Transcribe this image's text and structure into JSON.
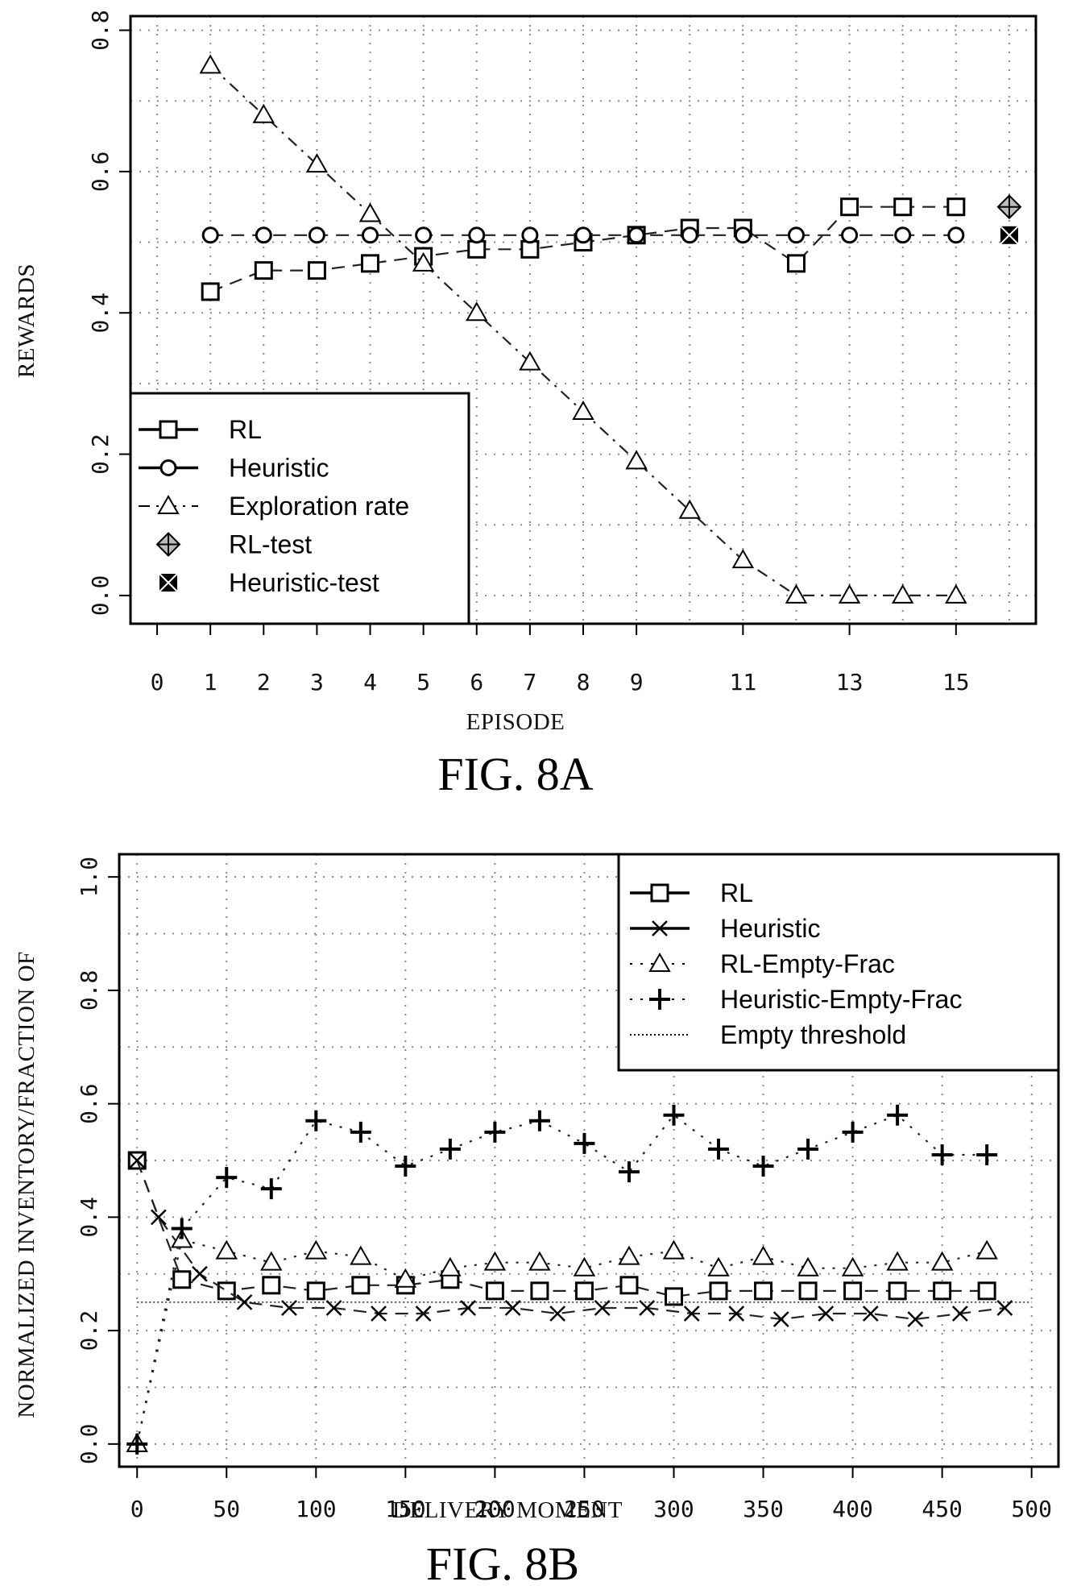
{
  "chart_data": [
    {
      "type": "line",
      "caption": "FIG. 8A",
      "xlabel": "EPISODE",
      "ylabel": "REWARDS",
      "xlim": [
        -0.5,
        16.5
      ],
      "ylim": [
        -0.04,
        0.82
      ],
      "x_ticks": [
        0,
        1,
        2,
        3,
        4,
        5,
        6,
        7,
        8,
        9,
        11,
        13,
        15
      ],
      "y_ticks": [
        "0.0",
        "0.2",
        "0.4",
        "0.6",
        "0.8"
      ],
      "grid": true,
      "legend_position": "bottom-left",
      "series": [
        {
          "name": "RL",
          "marker": "square",
          "line": "dashed",
          "x": [
            1,
            2,
            3,
            4,
            5,
            6,
            7,
            8,
            9,
            10,
            11,
            12,
            13,
            14,
            15
          ],
          "values": [
            0.43,
            0.46,
            0.46,
            0.47,
            0.48,
            0.49,
            0.49,
            0.5,
            0.51,
            0.52,
            0.52,
            0.47,
            0.55,
            0.55,
            0.55
          ]
        },
        {
          "name": "Heuristic",
          "marker": "circle",
          "line": "dashed",
          "x": [
            1,
            2,
            3,
            4,
            5,
            6,
            7,
            8,
            9,
            10,
            11,
            12,
            13,
            14,
            15
          ],
          "values": [
            0.51,
            0.51,
            0.51,
            0.51,
            0.51,
            0.51,
            0.51,
            0.51,
            0.51,
            0.51,
            0.51,
            0.51,
            0.51,
            0.51,
            0.51
          ]
        },
        {
          "name": "Exploration rate",
          "marker": "triangle",
          "line": "dashdot",
          "x": [
            1,
            2,
            3,
            4,
            5,
            6,
            7,
            8,
            9,
            10,
            11,
            12,
            13,
            14,
            15
          ],
          "values": [
            0.75,
            0.68,
            0.61,
            0.54,
            0.47,
            0.4,
            0.33,
            0.26,
            0.19,
            0.12,
            0.05,
            0.0,
            0.0,
            0.0,
            0.0
          ]
        },
        {
          "name": "RL-test",
          "marker": "diamond-cross",
          "line": "none",
          "x": [
            16
          ],
          "values": [
            0.55
          ]
        },
        {
          "name": "Heuristic-test",
          "marker": "x-square",
          "line": "none",
          "x": [
            16
          ],
          "values": [
            0.51
          ]
        }
      ]
    },
    {
      "type": "line",
      "caption": "FIG. 8B",
      "xlabel": "DELIVERY MOMENT",
      "ylabel": "NORMALIZED INVENTORY/FRACTION OF",
      "xlim": [
        -10,
        515
      ],
      "ylim": [
        -0.04,
        1.04
      ],
      "x_ticks": [
        0,
        50,
        100,
        150,
        200,
        250,
        300,
        350,
        400,
        450,
        500
      ],
      "y_ticks": [
        "0.0",
        "0.2",
        "0.4",
        "0.6",
        "0.8",
        "1.0"
      ],
      "grid": true,
      "legend_position": "top-right",
      "series": [
        {
          "name": "RL",
          "marker": "square",
          "line": "dashed",
          "x": [
            0,
            25,
            50,
            75,
            100,
            125,
            150,
            175,
            200,
            225,
            250,
            275,
            300,
            325,
            350,
            375,
            400,
            425,
            450,
            475
          ],
          "values": [
            0.5,
            0.29,
            0.27,
            0.28,
            0.27,
            0.28,
            0.28,
            0.29,
            0.27,
            0.27,
            0.27,
            0.28,
            0.26,
            0.27,
            0.27,
            0.27,
            0.27,
            0.27,
            0.27,
            0.27
          ]
        },
        {
          "name": "Heuristic",
          "marker": "x",
          "line": "dashed",
          "x": [
            0,
            12,
            35,
            60,
            85,
            110,
            135,
            160,
            185,
            210,
            235,
            260,
            285,
            310,
            335,
            360,
            385,
            410,
            435,
            460,
            485
          ],
          "values": [
            0.5,
            0.4,
            0.3,
            0.25,
            0.24,
            0.24,
            0.23,
            0.23,
            0.24,
            0.24,
            0.23,
            0.24,
            0.24,
            0.23,
            0.23,
            0.22,
            0.23,
            0.23,
            0.22,
            0.23,
            0.24
          ]
        },
        {
          "name": "RL-Empty-Frac",
          "marker": "triangle",
          "line": "dotted",
          "x": [
            0,
            25,
            50,
            75,
            100,
            125,
            150,
            175,
            200,
            225,
            250,
            275,
            300,
            325,
            350,
            375,
            400,
            425,
            450,
            475
          ],
          "values": [
            0.0,
            0.36,
            0.34,
            0.32,
            0.34,
            0.33,
            0.29,
            0.31,
            0.32,
            0.32,
            0.31,
            0.33,
            0.34,
            0.31,
            0.33,
            0.31,
            0.31,
            0.32,
            0.32,
            0.34
          ]
        },
        {
          "name": "Heuristic-Empty-Frac",
          "marker": "plus",
          "line": "dotted",
          "x": [
            0,
            25,
            50,
            75,
            100,
            125,
            150,
            175,
            200,
            225,
            250,
            275,
            300,
            325,
            350,
            375,
            400,
            425,
            450,
            475
          ],
          "values": [
            0.0,
            0.38,
            0.47,
            0.45,
            0.57,
            0.55,
            0.49,
            0.52,
            0.55,
            0.57,
            0.53,
            0.48,
            0.58,
            0.52,
            0.49,
            0.52,
            0.55,
            0.58,
            0.51,
            0.51
          ]
        },
        {
          "name": "Empty threshold",
          "marker": "none",
          "line": "thin-dotted",
          "x": [
            0,
            500
          ],
          "values": [
            0.25,
            0.25
          ]
        }
      ]
    }
  ]
}
